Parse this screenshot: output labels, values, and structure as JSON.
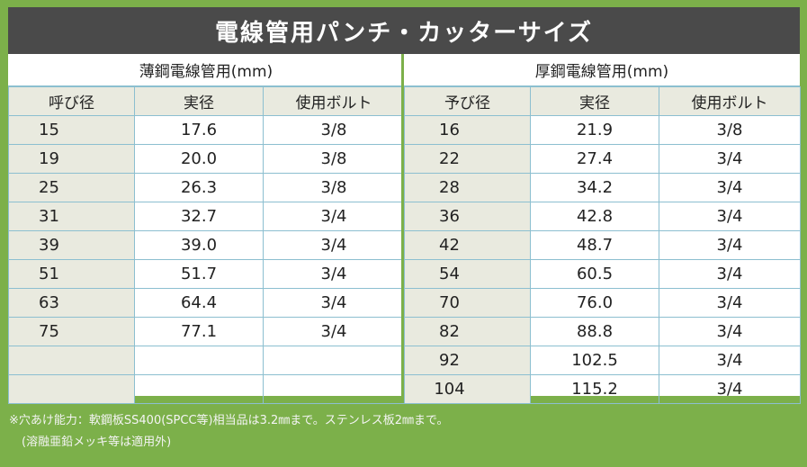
{
  "title": "電線管用パンチ・カッターサイズ",
  "thin": {
    "title": "薄鋼電線管用(mm)",
    "headers": [
      "呼び径",
      "実径",
      "使用ボルト"
    ],
    "rows": [
      [
        "15",
        "17.6",
        "3/8"
      ],
      [
        "19",
        "20.0",
        "3/8"
      ],
      [
        "25",
        "26.3",
        "3/8"
      ],
      [
        "31",
        "32.7",
        "3/4"
      ],
      [
        "39",
        "39.0",
        "3/4"
      ],
      [
        "51",
        "51.7",
        "3/4"
      ],
      [
        "63",
        "64.4",
        "3/4"
      ],
      [
        "75",
        "77.1",
        "3/4"
      ],
      [
        "",
        "",
        ""
      ],
      [
        "",
        "",
        ""
      ]
    ]
  },
  "thick": {
    "title": "厚鋼電線管用(mm)",
    "headers": [
      "予び径",
      "実径",
      "使用ボルト"
    ],
    "rows": [
      [
        "16",
        "21.9",
        "3/8"
      ],
      [
        "22",
        "27.4",
        "3/4"
      ],
      [
        "28",
        "34.2",
        "3/4"
      ],
      [
        "36",
        "42.8",
        "3/4"
      ],
      [
        "42",
        "48.7",
        "3/4"
      ],
      [
        "54",
        "60.5",
        "3/4"
      ],
      [
        "70",
        "76.0",
        "3/4"
      ],
      [
        "82",
        "88.8",
        "3/4"
      ],
      [
        "92",
        "102.5",
        "3/4"
      ],
      [
        "104",
        "115.2",
        "3/4"
      ]
    ]
  },
  "notes": [
    "※穴あけ能力：軟鋼板SS400(SPCC等)相当品は3.2㎜まで。ステンレス板2㎜まで。",
    "(溶融亜鉛メッキ等は適用外)"
  ]
}
